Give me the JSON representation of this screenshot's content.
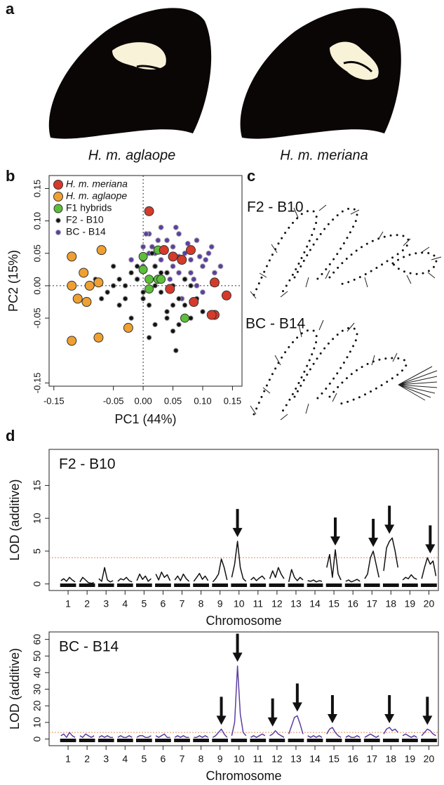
{
  "panel_labels": [
    "a",
    "b",
    "c",
    "d"
  ],
  "wings": {
    "labels": [
      "H. m. aglaope",
      "H. m. meriana"
    ],
    "label_colors": [
      "#f0a030",
      "#d63a2a"
    ]
  },
  "vector_panels": {
    "labels": [
      "F2 - B10",
      "BC - B14"
    ],
    "label_colors": [
      "#111111",
      "#5b3fa0"
    ]
  },
  "chart_data": [
    {
      "type": "scatter",
      "xlabel": "PC1 (44%)",
      "ylabel": "PC2 (15%)",
      "xlim": [
        -0.158,
        0.166
      ],
      "ylim": [
        -0.155,
        0.17
      ],
      "xticks": [
        -0.15,
        -0.05,
        {
          "value": 0,
          "label": "0.00"
        },
        0.05,
        {
          "value": 0.1,
          "label": "0.10"
        },
        0.15
      ],
      "yticks": [
        -0.15,
        -0.05,
        {
          "value": 0,
          "label": "0.00"
        },
        0.05,
        {
          "value": 0.1,
          "label": "0.10"
        },
        0.15
      ],
      "zero_lines": true,
      "series": [
        {
          "name": "H. m. meriana",
          "color": "#d63a2a",
          "edge_color": "#333333",
          "marker_radius": 6.5,
          "font_style": "italic",
          "x": [
            0.01,
            0.035,
            0.05,
            0.065,
            0.08,
            0.12,
            0.14,
            0.12,
            0.115,
            0.085,
            0.045
          ],
          "values": [
            0.115,
            0.055,
            0.045,
            0.04,
            0.055,
            0.005,
            -0.015,
            -0.045,
            -0.045,
            -0.025,
            -0.005
          ]
        },
        {
          "name": "H. m. aglaope",
          "color": "#f0a030",
          "edge_color": "#333333",
          "marker_radius": 6.5,
          "font_style": "italic",
          "x": [
            -0.12,
            -0.1,
            -0.07,
            -0.12,
            -0.09,
            -0.075,
            -0.11,
            -0.095,
            -0.075,
            -0.025,
            -0.12
          ],
          "values": [
            0.045,
            0.02,
            0.055,
            0.0,
            0.0,
            0.005,
            -0.02,
            -0.025,
            -0.08,
            -0.065,
            -0.085
          ]
        },
        {
          "name": "F1 hybrids",
          "color": "#5cbf3a",
          "edge_color": "#333333",
          "marker_radius": 6,
          "font_style": "normal",
          "x": [
            0.0,
            0.0,
            0.01,
            0.025,
            0.03,
            0.01,
            0.07,
            0.025
          ],
          "values": [
            0.045,
            0.025,
            0.01,
            0.01,
            0.01,
            -0.005,
            -0.05,
            0.055
          ]
        },
        {
          "name": "F2 - B10",
          "color": "#111111",
          "edge_color": "#888888",
          "marker_radius": 3.2,
          "font_style": "normal",
          "x": [
            -0.08,
            -0.06,
            -0.05,
            -0.04,
            -0.03,
            -0.02,
            -0.02,
            -0.01,
            0.0,
            0.0,
            0.01,
            0.02,
            0.02,
            0.03,
            0.04,
            0.04,
            0.05,
            0.05,
            0.06,
            0.07,
            0.08,
            0.09,
            0.1,
            -0.07,
            -0.05,
            -0.03,
            -0.01,
            0.01,
            0.03,
            0.05,
            0.07,
            0.06,
            0.02,
            -0.04,
            0.0,
            0.04,
            0.08,
            0.055,
            -0.075,
            0.015
          ],
          "values": [
            0.01,
            -0.01,
            0.03,
            -0.03,
            0.0,
            0.02,
            -0.05,
            0.01,
            -0.02,
            0.04,
            -0.03,
            0.0,
            -0.06,
            -0.01,
            0.02,
            -0.04,
            0.0,
            -0.07,
            -0.02,
            -0.03,
            -0.05,
            -0.02,
            -0.04,
            -0.02,
            0.0,
            -0.02,
            0.03,
            -0.08,
            0.02,
            -0.03,
            0.01,
            -0.06,
            0.03,
            0.01,
            -0.01,
            -0.05,
            0.0,
            -0.1,
            -0.08,
            0.05
          ]
        },
        {
          "name": "BC - B14",
          "color": "#5b3fa0",
          "edge_color": "#aaaaaa",
          "marker_radius": 3.5,
          "font_style": "normal",
          "x": [
            0.0,
            0.01,
            0.02,
            0.03,
            0.04,
            0.05,
            0.06,
            0.07,
            0.08,
            0.09,
            0.1,
            0.11,
            0.12,
            0.0,
            0.01,
            0.02,
            0.03,
            0.04,
            0.05,
            0.06,
            0.07,
            0.08,
            0.09,
            0.1,
            -0.01,
            0.015,
            0.035,
            0.055,
            0.075,
            0.095,
            0.025,
            0.045,
            0.065,
            0.085,
            0.105,
            -0.02,
            0.005,
            0.13,
            0.115,
            0.06
          ],
          "values": [
            0.06,
            0.08,
            0.05,
            0.09,
            0.07,
            0.06,
            0.08,
            0.05,
            0.04,
            0.07,
            0.03,
            0.05,
            0.02,
            0.03,
            0.05,
            0.03,
            0.04,
            0.02,
            0.03,
            0.02,
            0.01,
            0.02,
            0.0,
            -0.01,
            0.01,
            0.06,
            0.055,
            0.09,
            0.065,
            0.045,
            0.07,
            0.01,
            -0.02,
            0.01,
            0.04,
            0.04,
            0.08,
            0.03,
            0.06,
            0.045
          ]
        }
      ]
    },
    {
      "type": "line",
      "title": "F2 - B10",
      "title_color": "#111111",
      "xlabel": "Chromosome",
      "ylabel": "LOD (additive)",
      "xlim": [
        0.0,
        20.5
      ],
      "ylim": [
        -1,
        20.5
      ],
      "xticks": [
        1,
        2,
        3,
        4,
        5,
        6,
        7,
        8,
        9,
        10,
        11,
        12,
        13,
        14,
        15,
        16,
        17,
        18,
        19,
        20
      ],
      "yticks": [
        0,
        5,
        10,
        15
      ],
      "threshold": 4,
      "threshold_color": "#e8895a",
      "arrows": [
        9.92,
        15.07,
        17.07,
        17.92,
        20.07
      ],
      "series": [
        {
          "color": "#111111",
          "x": [
            0.62,
            0.77,
            0.92,
            1.07,
            1.22,
            1.37,
            1.5,
            1.62,
            1.77,
            1.92,
            2.07,
            2.22,
            2.37,
            2.5,
            2.62,
            2.77,
            2.92,
            3.07,
            3.22,
            3.37,
            3.5,
            3.62,
            3.77,
            3.92,
            4.07,
            4.22,
            4.37,
            4.5,
            4.62,
            4.77,
            4.92,
            5.07,
            5.22,
            5.37,
            5.5,
            5.62,
            5.77,
            5.92,
            6.07,
            6.22,
            6.37,
            6.5,
            6.62,
            6.77,
            6.92,
            7.07,
            7.22,
            7.37,
            7.5,
            7.62,
            7.77,
            7.92,
            8.07,
            8.22,
            8.37,
            8.5,
            8.62,
            8.77,
            8.92,
            9.07,
            9.22,
            9.37,
            9.5,
            9.62,
            9.77,
            9.92,
            10.07,
            10.22,
            10.37,
            10.5,
            10.62,
            10.77,
            10.92,
            11.07,
            11.22,
            11.37,
            11.5,
            11.62,
            11.77,
            11.92,
            12.07,
            12.22,
            12.37,
            12.5,
            12.62,
            12.77,
            12.92,
            13.07,
            13.22,
            13.37,
            13.5,
            13.62,
            13.77,
            13.92,
            14.07,
            14.22,
            14.37,
            14.5,
            14.62,
            14.77,
            14.92,
            15.07,
            15.22,
            15.37,
            15.5,
            15.62,
            15.77,
            15.92,
            16.07,
            16.22,
            16.37,
            16.5,
            16.62,
            16.77,
            16.92,
            17.07,
            17.22,
            17.37,
            17.5,
            17.62,
            17.77,
            17.92,
            18.07,
            18.22,
            18.37,
            18.5,
            18.62,
            18.77,
            18.92,
            19.07,
            19.22,
            19.37,
            19.5,
            19.62,
            19.77,
            19.92,
            20.07,
            20.22,
            20.37
          ],
          "values": [
            0.5,
            0.8,
            0.4,
            1.0,
            0.6,
            0.3,
            null,
            0.3,
            1.0,
            0.6,
            0.2,
            0.1,
            0.2,
            null,
            0.8,
            0.4,
            2.5,
            0.6,
            0.3,
            0.5,
            null,
            0.4,
            0.8,
            0.6,
            1.0,
            0.5,
            0.3,
            null,
            0.5,
            1.5,
            0.7,
            1.2,
            0.4,
            0.8,
            null,
            1.5,
            0.6,
            1.8,
            1.0,
            1.4,
            0.5,
            null,
            0.6,
            1.2,
            0.5,
            1.5,
            0.8,
            0.4,
            null,
            0.4,
            1.0,
            1.6,
            0.7,
            1.2,
            0.5,
            null,
            0.3,
            0.8,
            1.5,
            3.8,
            2.5,
            0.6,
            null,
            1.0,
            3.0,
            6.5,
            2.5,
            0.8,
            0.4,
            null,
            0.6,
            1.0,
            0.5,
            0.9,
            1.2,
            0.7,
            null,
            0.8,
            2.0,
            1.0,
            2.5,
            1.5,
            0.8,
            null,
            0.3,
            2.2,
            1.0,
            0.5,
            1.0,
            0.6,
            null,
            0.5,
            0.4,
            0.6,
            0.3,
            0.5,
            0.4,
            null,
            2.5,
            4.5,
            1.0,
            5.2,
            1.5,
            0.6,
            null,
            0.4,
            0.6,
            0.3,
            0.5,
            0.7,
            0.4,
            null,
            0.8,
            1.5,
            4.0,
            5.0,
            3.0,
            1.0,
            null,
            2.0,
            5.5,
            6.5,
            7.0,
            5.0,
            2.5,
            null,
            0.6,
            1.0,
            0.8,
            1.4,
            0.9,
            0.7,
            null,
            0.8,
            2.5,
            4.0,
            3.0,
            3.5,
            1.2
          ]
        }
      ]
    },
    {
      "type": "line",
      "title": "BC - B14",
      "title_color": "#5b3fa0",
      "xlabel": "Chromosome",
      "ylabel": "LOD (additive)",
      "xlim": [
        0.0,
        20.5
      ],
      "ylim": [
        -4,
        64.5
      ],
      "xticks": [
        1,
        2,
        3,
        4,
        5,
        6,
        7,
        8,
        9,
        10,
        11,
        12,
        13,
        14,
        15,
        16,
        17,
        18,
        19,
        20
      ],
      "yticks": [
        0,
        10,
        20,
        30,
        40,
        50,
        60
      ],
      "threshold": 4,
      "threshold_color": "#e8895a",
      "arrows": [
        9.07,
        9.92,
        11.77,
        13.07,
        14.92,
        17.92,
        19.92
      ],
      "series": [
        {
          "color": "#5b3fa0",
          "x": [
            0.62,
            0.77,
            0.92,
            1.07,
            1.22,
            1.37,
            1.5,
            1.62,
            1.77,
            1.92,
            2.07,
            2.22,
            2.37,
            2.5,
            2.62,
            2.77,
            2.92,
            3.07,
            3.22,
            3.37,
            3.5,
            3.62,
            3.77,
            3.92,
            4.07,
            4.22,
            4.37,
            4.5,
            4.62,
            4.77,
            4.92,
            5.07,
            5.22,
            5.37,
            5.5,
            5.62,
            5.77,
            5.92,
            6.07,
            6.22,
            6.37,
            6.5,
            6.62,
            6.77,
            6.92,
            7.07,
            7.22,
            7.37,
            7.5,
            7.62,
            7.77,
            7.92,
            8.07,
            8.22,
            8.37,
            8.5,
            8.62,
            8.77,
            8.92,
            9.07,
            9.22,
            9.37,
            9.5,
            9.62,
            9.77,
            9.92,
            10.07,
            10.22,
            10.37,
            10.5,
            10.62,
            10.77,
            10.92,
            11.07,
            11.22,
            11.37,
            11.5,
            11.62,
            11.77,
            11.92,
            12.07,
            12.22,
            12.37,
            12.5,
            12.62,
            12.77,
            12.92,
            13.07,
            13.22,
            13.37,
            13.5,
            13.62,
            13.77,
            13.92,
            14.07,
            14.22,
            14.37,
            14.5,
            14.62,
            14.77,
            14.92,
            15.07,
            15.22,
            15.37,
            15.5,
            15.62,
            15.77,
            15.92,
            16.07,
            16.22,
            16.37,
            16.5,
            16.62,
            16.77,
            16.92,
            17.07,
            17.22,
            17.37,
            17.5,
            17.62,
            17.77,
            17.92,
            18.07,
            18.22,
            18.37,
            18.5,
            18.62,
            18.77,
            18.92,
            19.07,
            19.22,
            19.37,
            19.5,
            19.62,
            19.77,
            19.92,
            20.07,
            20.22,
            20.37
          ],
          "values": [
            2,
            3,
            1,
            4,
            2,
            1,
            null,
            2,
            1,
            3,
            2,
            1,
            2,
            null,
            1,
            2,
            1,
            2,
            1,
            1,
            null,
            1,
            2,
            1,
            1,
            2,
            1,
            null,
            1,
            2,
            2,
            1,
            1,
            2,
            null,
            2,
            1,
            2,
            3,
            1,
            1,
            null,
            1,
            2,
            1,
            2,
            1,
            1,
            null,
            1,
            1,
            2,
            1,
            2,
            1,
            null,
            1,
            2,
            4,
            6,
            3,
            1,
            null,
            2,
            10,
            44,
            15,
            4,
            2,
            null,
            1,
            2,
            1,
            2,
            3,
            2,
            null,
            2,
            3,
            5,
            3,
            2,
            1,
            null,
            3,
            8,
            13,
            14,
            9,
            3,
            null,
            2,
            1,
            2,
            1,
            2,
            1,
            null,
            3,
            6,
            7,
            4,
            2,
            1,
            null,
            1,
            2,
            1,
            1,
            2,
            1,
            null,
            1,
            2,
            3,
            2,
            1,
            2,
            null,
            3,
            6,
            7,
            5,
            6,
            4,
            null,
            2,
            3,
            2,
            1,
            2,
            1,
            null,
            2,
            4,
            6,
            5,
            3,
            2
          ]
        }
      ]
    }
  ]
}
